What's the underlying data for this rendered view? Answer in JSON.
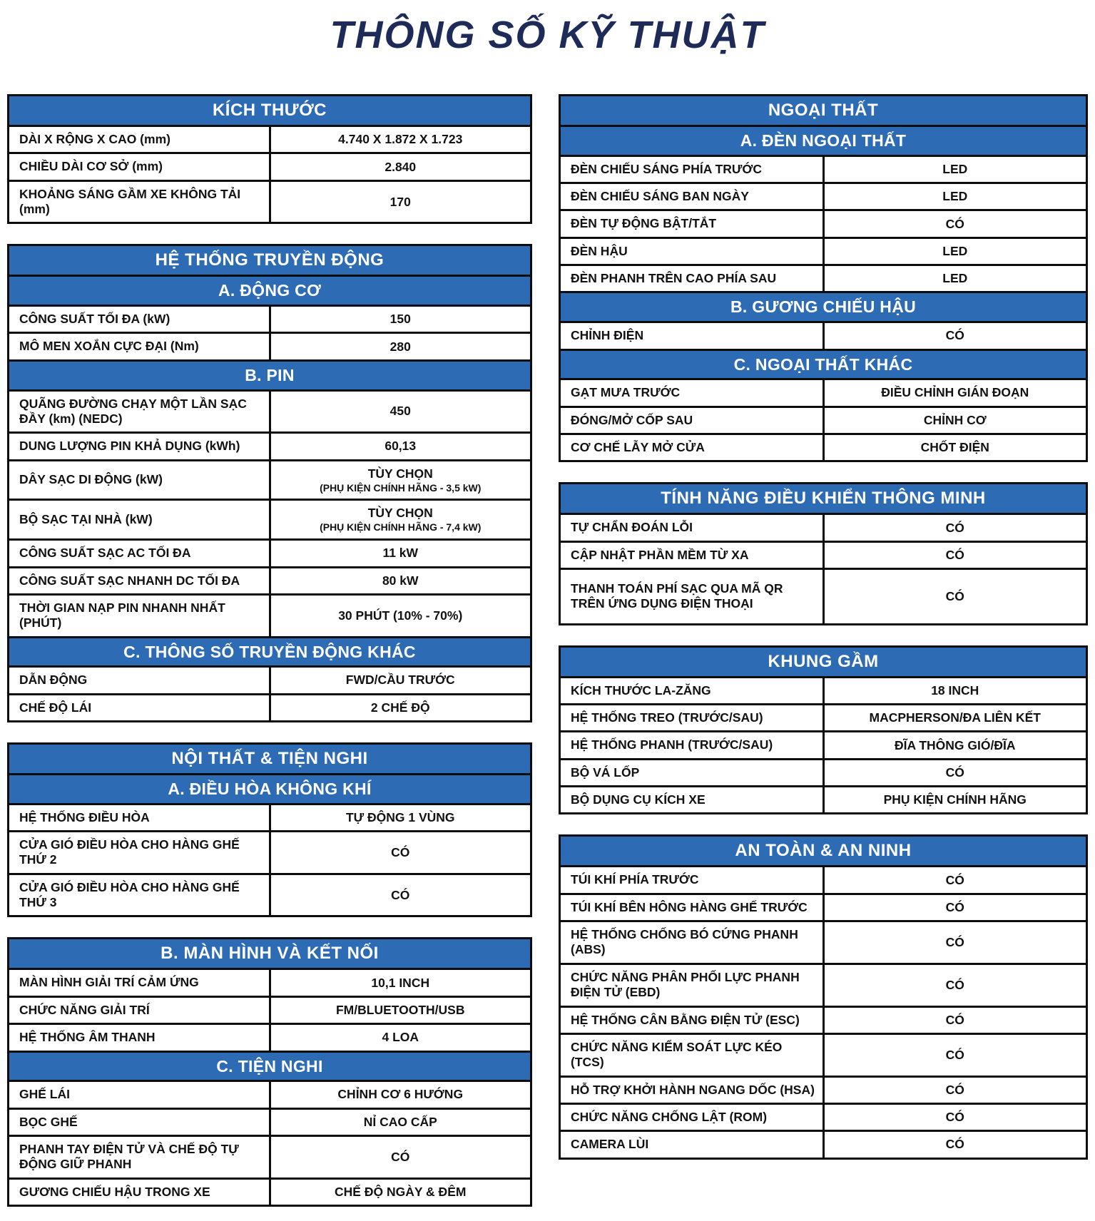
{
  "page_title": "THÔNG SỐ KỸ THUẬT",
  "colors": {
    "header_blue": "#2d6bb4",
    "title_color": "#1e2b58",
    "border_black": "#0c0c0c",
    "text_black": "#121212"
  },
  "columns": [
    {
      "tables": [
        {
          "title": "KÍCH THƯỚC",
          "sections": [
            {
              "rows": [
                {
                  "label": "DÀI X RỘNG X CAO (mm)",
                  "value": "4.740 X 1.872 X 1.723"
                },
                {
                  "label": "CHIỀU DÀI CƠ SỞ (mm)",
                  "value": "2.840"
                },
                {
                  "label": "KHOẢNG SÁNG GẦM XE KHÔNG TẢI (mm)",
                  "value": "170"
                }
              ]
            }
          ]
        },
        {
          "title": "HỆ THỐNG TRUYỀN ĐỘNG",
          "sections": [
            {
              "header": "A. ĐỘNG CƠ",
              "rows": [
                {
                  "label": "CÔNG SUẤT TỐI ĐA (kW)",
                  "value": "150"
                },
                {
                  "label": "MÔ MEN XOẮN CỰC ĐẠI (Nm)",
                  "value": "280"
                }
              ]
            },
            {
              "header": "B. PIN",
              "rows": [
                {
                  "label": "QUÃNG ĐƯỜNG CHẠY MỘT LẦN SẠC ĐẦY (km) (NEDC)",
                  "value": "450"
                },
                {
                  "label": "DUNG LƯỢNG PIN KHẢ DỤNG (kWh)",
                  "value": "60,13"
                },
                {
                  "label": "DÂY SẠC DI ĐỘNG (kW)",
                  "value": "TÙY CHỌN",
                  "value_note": "(PHỤ KIỆN CHÍNH HÃNG - 3,5 kW)"
                },
                {
                  "label": "BỘ SẠC TẠI NHÀ (kW)",
                  "value": "TÙY CHỌN",
                  "value_note": "(PHỤ KIỆN CHÍNH HÃNG - 7,4 kW)"
                },
                {
                  "label": "CÔNG SUẤT SẠC AC TỐI ĐA",
                  "value": "11 kW"
                },
                {
                  "label": "CÔNG SUẤT SẠC NHANH DC TỐI ĐA",
                  "value": "80 kW"
                },
                {
                  "label": "THỜI GIAN NẠP PIN NHANH NHẤT (PHÚT)",
                  "value": "30 PHÚT (10% - 70%)"
                }
              ]
            },
            {
              "header": "C. THÔNG SỐ TRUYỀN ĐỘNG KHÁC",
              "rows": [
                {
                  "label": "DẪN ĐỘNG",
                  "value": "FWD/CẦU TRƯỚC"
                },
                {
                  "label": "CHẾ ĐỘ LÁI",
                  "value": "2 CHẾ ĐỘ"
                }
              ]
            }
          ]
        },
        {
          "title": "NỘI THẤT & TIỆN NGHI",
          "sections": [
            {
              "header": "A. ĐIỀU HÒA KHÔNG KHÍ",
              "rows": [
                {
                  "label": "HỆ THỐNG ĐIỀU HÒA",
                  "value": "TỰ ĐỘNG 1 VÙNG"
                },
                {
                  "label": "CỬA GIÓ ĐIỀU HÒA CHO HÀNG GHẾ THỨ 2",
                  "value": "CÓ"
                },
                {
                  "label": "CỬA GIÓ ĐIỀU HÒA CHO HÀNG GHẾ THỨ 3",
                  "value": "CÓ"
                }
              ]
            }
          ]
        },
        {
          "title": "B. MÀN HÌNH VÀ KẾT NỐI",
          "sections": [
            {
              "rows": [
                {
                  "label": "MÀN HÌNH GIẢI TRÍ CẢM ỨNG",
                  "value": "10,1 INCH"
                },
                {
                  "label": "CHỨC NĂNG GIẢI TRÍ",
                  "value": "FM/BLUETOOTH/USB"
                },
                {
                  "label": "HỆ THỐNG ÂM THANH",
                  "value": "4 LOA"
                }
              ]
            },
            {
              "header": "C. TIỆN NGHI",
              "rows": [
                {
                  "label": "GHẾ LÁI",
                  "value": "CHỈNH CƠ 6 HƯỚNG"
                },
                {
                  "label": "BỌC GHẾ",
                  "value": "NỈ CAO CẤP"
                },
                {
                  "label": "PHANH TAY ĐIỆN TỬ VÀ CHẾ ĐỘ TỰ ĐỘNG GIỮ PHANH",
                  "value": "CÓ"
                },
                {
                  "label": "GƯƠNG CHIẾU HẬU TRONG XE",
                  "value": "CHẾ ĐỘ NGÀY & ĐÊM"
                }
              ]
            }
          ]
        }
      ]
    },
    {
      "tables": [
        {
          "title": "NGOẠI THẤT",
          "sections": [
            {
              "header": "A. ĐÈN NGOẠI THẤT",
              "rows": [
                {
                  "label": "ĐÈN CHIẾU SÁNG PHÍA TRƯỚC",
                  "value": "LED"
                },
                {
                  "label": "ĐÈN CHIẾU SÁNG BAN NGÀY",
                  "value": "LED"
                },
                {
                  "label": "ĐÈN TỰ ĐỘNG BẬT/TẮT",
                  "value": "CÓ"
                },
                {
                  "label": "ĐÈN HẬU",
                  "value": "LED"
                },
                {
                  "label": "ĐÈN PHANH TRÊN CAO PHÍA SAU",
                  "value": "LED"
                }
              ]
            },
            {
              "header": "B. GƯƠNG CHIẾU HẬU",
              "rows": [
                {
                  "label": "CHỈNH ĐIỆN",
                  "value": "CÓ"
                }
              ]
            },
            {
              "header": "C. NGOẠI THẤT KHÁC",
              "rows": [
                {
                  "label": "GẠT MƯA TRƯỚC",
                  "value": "ĐIỀU CHỈNH GIÁN ĐOẠN"
                },
                {
                  "label": "ĐÓNG/MỞ CỐP SAU",
                  "value": "CHỈNH CƠ"
                },
                {
                  "label": "CƠ CHẾ LẪY MỞ CỬA",
                  "value": "CHỐT ĐIỆN"
                }
              ]
            }
          ]
        },
        {
          "title": "TÍNH NĂNG ĐIỀU KHIỂN THÔNG MINH",
          "sections": [
            {
              "rows": [
                {
                  "label": "TỰ CHẨN ĐOÁN LỖI",
                  "value": "CÓ"
                },
                {
                  "label": "CẬP NHẬT PHẦN MỀM TỪ XA",
                  "value": "CÓ"
                },
                {
                  "label": "THANH TOÁN PHÍ SẠC QUA MÃ QR\nTRÊN ỨNG DỤNG ĐIỆN THOẠI",
                  "value": "CÓ",
                  "tall": true
                }
              ]
            }
          ]
        },
        {
          "title": "KHUNG GẦM",
          "sections": [
            {
              "rows": [
                {
                  "label": "KÍCH THƯỚC LA-ZĂNG",
                  "value": "18 INCH"
                },
                {
                  "label": "HỆ THỐNG TREO (TRƯỚC/SAU)",
                  "value": "MACPHERSON/ĐA LIÊN KẾT"
                },
                {
                  "label": "HỆ THỐNG PHANH (TRƯỚC/SAU)",
                  "value": "ĐĨA THÔNG GIÓ/ĐĨA"
                },
                {
                  "label": "BỘ VÁ LỐP",
                  "value": "CÓ"
                },
                {
                  "label": "BỘ DỤNG CỤ KÍCH XE",
                  "value": "PHỤ KIỆN CHÍNH HÃNG"
                }
              ]
            }
          ]
        },
        {
          "title": "AN TOÀN & AN NINH",
          "sections": [
            {
              "rows": [
                {
                  "label": "TÚI KHÍ PHÍA TRƯỚC",
                  "value": "CÓ"
                },
                {
                  "label": "TÚI KHÍ BÊN HÔNG HÀNG GHẾ TRƯỚC",
                  "value": "CÓ"
                },
                {
                  "label": "HỆ THỐNG CHỐNG BÓ CỨNG PHANH (ABS)",
                  "value": "CÓ"
                },
                {
                  "label": "CHỨC NĂNG PHÂN PHỐI LỰC PHANH ĐIỆN TỬ (EBD)",
                  "value": "CÓ"
                },
                {
                  "label": "HỆ THỐNG CÂN BẰNG ĐIỆN TỬ (ESC)",
                  "value": "CÓ"
                },
                {
                  "label": "CHỨC NĂNG KIỂM SOÁT LỰC KÉO (TCS)",
                  "value": "CÓ"
                },
                {
                  "label": "HỖ TRỢ KHỞI HÀNH NGANG DỐC (HSA)",
                  "value": "CÓ"
                },
                {
                  "label": "CHỨC NĂNG CHỐNG LẬT (ROM)",
                  "value": "CÓ"
                },
                {
                  "label": "CAMERA LÙI",
                  "value": "CÓ"
                }
              ]
            }
          ]
        }
      ]
    }
  ]
}
